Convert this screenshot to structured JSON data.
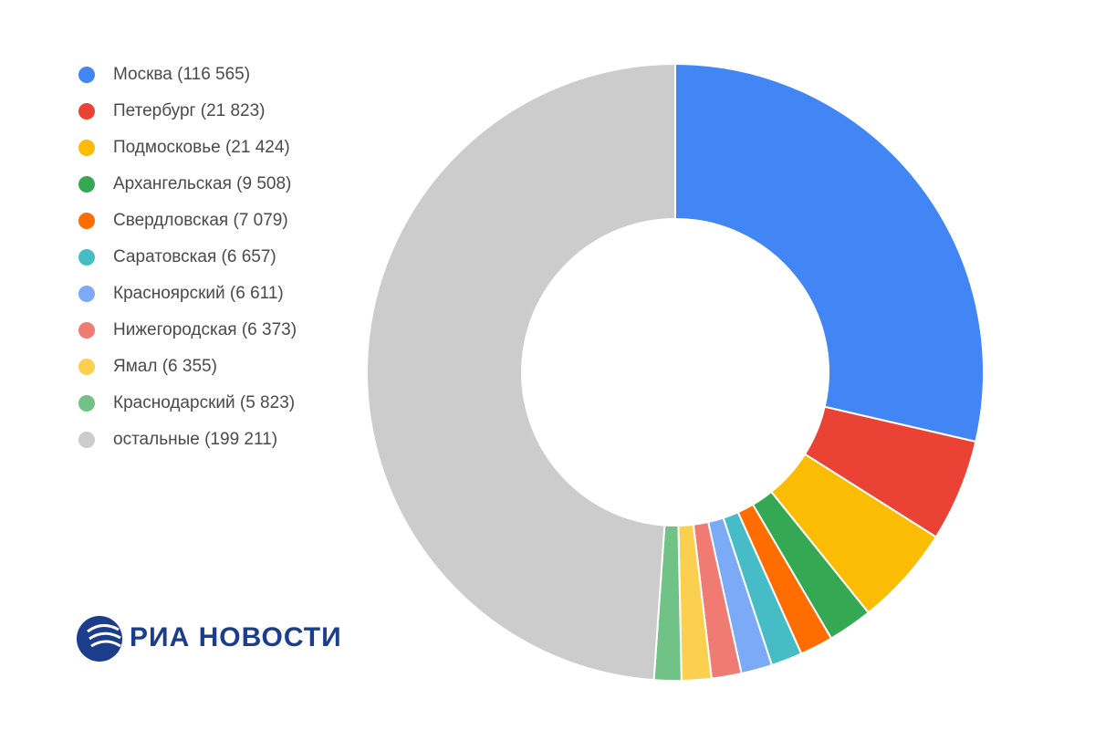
{
  "chart_data": {
    "type": "pie",
    "variant": "donut",
    "title": "",
    "legend_position": "left",
    "slices": [
      {
        "label": "Москва (116 565)",
        "name": "Москва",
        "value": 116565,
        "color": "#4285f4"
      },
      {
        "label": "Петербург (21 823)",
        "name": "Петербург",
        "value": 21823,
        "color": "#ea4335"
      },
      {
        "label": "Подмосковье (21 424)",
        "name": "Подмосковье",
        "value": 21424,
        "color": "#fbbc04"
      },
      {
        "label": "Архангельская (9 508)",
        "name": "Архангельская",
        "value": 9508,
        "color": "#34a853"
      },
      {
        "label": "Свердловская (7 079)",
        "name": "Свердловская",
        "value": 7079,
        "color": "#ff6d01"
      },
      {
        "label": "Саратовская (6 657)",
        "name": "Саратовская",
        "value": 6657,
        "color": "#46bdc6"
      },
      {
        "label": "Красноярский (6 611)",
        "name": "Красноярский",
        "value": 6611,
        "color": "#7baaf7"
      },
      {
        "label": "Нижегородская (6 373)",
        "name": "Нижегородская",
        "value": 6373,
        "color": "#f07b72"
      },
      {
        "label": "Ямал (6 355)",
        "name": "Ямал",
        "value": 6355,
        "color": "#fcd04f"
      },
      {
        "label": "Краснодарский (5 823)",
        "name": "Краснодарский",
        "value": 5823,
        "color": "#71c287"
      },
      {
        "label": "остальные (199 211)",
        "name": "остальные",
        "value": 199211,
        "color": "#cccccc"
      }
    ]
  },
  "logo": {
    "text": "РИА НОВОСТИ",
    "color": "#1c3c8c"
  }
}
